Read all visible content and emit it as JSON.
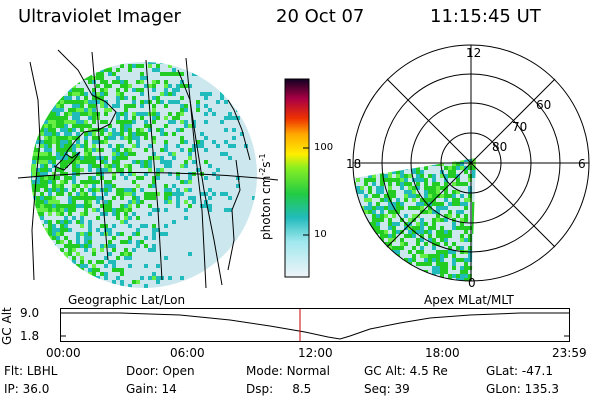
{
  "header": {
    "title": "Ultraviolet Imager",
    "date": "20 Oct 07",
    "time": "11:15:45 UT"
  },
  "left_panel": {
    "caption": "Geographic Lat/Lon"
  },
  "right_panel": {
    "caption": "Apex MLat/MLT",
    "mlt_labels": {
      "top": "12",
      "left": "18",
      "right": "6",
      "bottom": "0"
    },
    "lat_labels": [
      "60",
      "70",
      "80"
    ]
  },
  "colorbar": {
    "unit_label": "photon cm",
    "unit_exp1": "-2",
    "unit_s": "s",
    "unit_exp2": "-1",
    "ticks": [
      "100",
      "10"
    ]
  },
  "timeline": {
    "ylabel": "GC Alt",
    "y_ticks": [
      "9.0",
      "1.8"
    ],
    "x_ticks": [
      "00:00",
      "06:00",
      "12:00",
      "18:00",
      "23:59"
    ],
    "marker_color": "#cc0000"
  },
  "info": {
    "row1": [
      {
        "key": "Flt:",
        "value": "LBHL"
      },
      {
        "key": "Door:",
        "value": "Open"
      },
      {
        "key": "Mode:",
        "value": "Normal"
      },
      {
        "key": "GC Alt:",
        "value": "4.5 Re"
      },
      {
        "key": "GLat:",
        "value": "-47.1"
      }
    ],
    "row2": [
      {
        "key": "IP:",
        "value": "36.0"
      },
      {
        "key": "Gain:",
        "value": "14"
      },
      {
        "key": "Dsp:",
        "value": "8.5"
      },
      {
        "key": "Seq:",
        "value": "39"
      },
      {
        "key": "GLon:",
        "value": "135.3"
      }
    ]
  },
  "colors": {
    "green": "#22cc22",
    "lime": "#66ee44",
    "cyan": "#22bbbb",
    "pale": "#cce8ee"
  }
}
